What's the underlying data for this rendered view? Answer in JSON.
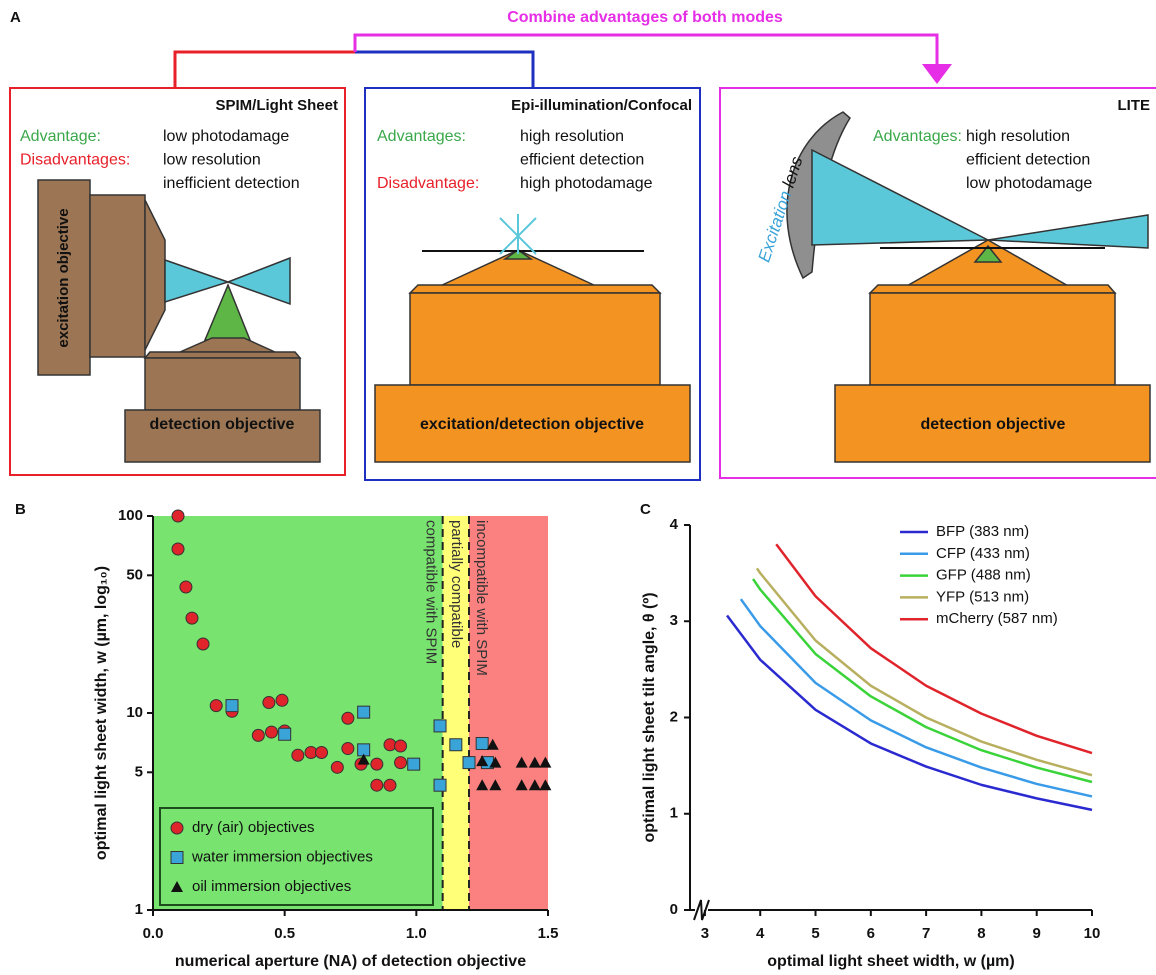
{
  "panel_a": {
    "label": "A",
    "banner": "Combine advantages of both modes",
    "excitation_objective": "excitation objective",
    "excitation_lens": [
      "Excitation",
      "lens"
    ],
    "boxes": [
      {
        "title": "SPIM/Light Sheet",
        "color": "#e8202a",
        "items": [
          {
            "key": "Advantage:",
            "key_color": "#3aa84a",
            "text": "low photodamage"
          },
          {
            "key": "Disadvantages:",
            "key_color": "#e8202a",
            "text": "low resolution"
          },
          {
            "text": "inefficient detection"
          }
        ],
        "objective_label": "detection objective"
      },
      {
        "title": "Epi-illumination/Confocal",
        "color": "#1f2fbf",
        "items": [
          {
            "key": "Advantages:",
            "key_color": "#3aa84a",
            "text": "high resolution"
          },
          {
            "text": "efficient detection"
          },
          {
            "key": "Disadvantage:",
            "key_color": "#e8202a",
            "text": "high photodamage"
          }
        ],
        "objective_label": "excitation/detection objective"
      },
      {
        "title": "LITE",
        "color": "#e62ee6",
        "items": [
          {
            "key": "Advantages:",
            "key_color": "#3aa84a",
            "text": "high resolution"
          },
          {
            "text": "efficient detection"
          },
          {
            "text": "low photodamage"
          }
        ],
        "objective_label": "detection objective"
      }
    ]
  },
  "chart_data": [
    {
      "panel": "B",
      "type": "scatter",
      "x_label": "numerical aperture (NA) of detection objective",
      "y_label": "optimal light sheet width, w (µm, log₁₀)",
      "log_y": true,
      "xlim": [
        0,
        1.5
      ],
      "ylim": [
        1,
        100
      ],
      "xticks": [
        {
          "value": 0,
          "label": "0.0"
        },
        0.5,
        {
          "value": 1,
          "label": "1.0"
        },
        1.5
      ],
      "yticks": [
        1,
        5,
        10,
        50,
        100
      ],
      "regions": [
        {
          "from": 0,
          "to": 1.1,
          "color": "#78e36f",
          "label": "compatible with SPIM"
        },
        {
          "from": 1.1,
          "to": 1.2,
          "color": "#ffff78",
          "label": "partially compatible"
        },
        {
          "from": 1.2,
          "to": 1.5,
          "color": "#fb8080",
          "label": "incompatible with SPIM"
        }
      ],
      "series": [
        {
          "name": "dry (air) objectives",
          "color": "#e0242c",
          "marker": "circle",
          "x": [
            0.095,
            0.095,
            0.125,
            0.148,
            0.19,
            0.24,
            0.3,
            0.44,
            0.49,
            0.45,
            0.5,
            0.4,
            0.55,
            0.6,
            0.64,
            0.7,
            0.74,
            0.74,
            0.79,
            0.85,
            0.9,
            0.94,
            0.94,
            0.85,
            0.9
          ],
          "values": [
            100,
            68,
            43.6,
            30.3,
            22.4,
            10.9,
            10.2,
            11.3,
            11.6,
            8,
            8.1,
            7.7,
            6.1,
            6.3,
            6.3,
            5.3,
            6.6,
            9.4,
            5.5,
            5.5,
            6.9,
            6.8,
            5.6,
            4.3,
            4.3
          ]
        },
        {
          "name": "water immersion objectives",
          "color": "#3aa3d8",
          "marker": "square",
          "x": [
            0.3,
            0.5,
            0.8,
            0.8,
            0.99,
            1.09,
            1.09,
            1.15,
            1.2,
            1.25,
            1.27
          ],
          "values": [
            10.9,
            7.8,
            10.1,
            6.5,
            5.5,
            8.6,
            4.3,
            6.9,
            5.6,
            7.0,
            5.6
          ]
        },
        {
          "name": "oil immersion objectives",
          "color": "#111111",
          "marker": "triangle",
          "x": [
            0.8,
            1.25,
            1.29,
            1.3,
            1.25,
            1.3,
            1.4,
            1.4,
            1.45,
            1.45,
            1.49,
            1.49
          ],
          "values": [
            5.8,
            5.7,
            6.9,
            5.6,
            4.3,
            4.3,
            5.6,
            4.3,
            5.6,
            4.3,
            5.6,
            4.3
          ]
        }
      ]
    },
    {
      "panel": "C",
      "type": "line",
      "x_label": "optimal light sheet width, w (µm)",
      "y_label": "optimal light sheet tilt angle, θ (º)",
      "xlim": [
        2.73,
        10
      ],
      "ylim": [
        0,
        4
      ],
      "xticks": [
        3,
        4,
        5,
        6,
        7,
        8,
        9,
        10
      ],
      "yticks": [
        0,
        1,
        2,
        3,
        4
      ],
      "legend": "top-right",
      "series": [
        {
          "name": "BFP (383 nm)",
          "color": "#2a2ad0",
          "x": [
            3.4,
            4,
            5,
            6,
            7,
            8,
            9,
            10
          ],
          "values": [
            3.06,
            2.6,
            2.08,
            1.73,
            1.49,
            1.3,
            1.16,
            1.04
          ]
        },
        {
          "name": "CFP (433 nm)",
          "color": "#3a9be8",
          "x": [
            3.65,
            4,
            5,
            6,
            7,
            8,
            9,
            10
          ],
          "values": [
            3.23,
            2.95,
            2.36,
            1.97,
            1.69,
            1.48,
            1.31,
            1.18
          ]
        },
        {
          "name": "GFP (488 nm)",
          "color": "#3ad43a",
          "x": [
            3.87,
            4,
            5,
            6,
            7,
            8,
            9,
            10
          ],
          "values": [
            3.44,
            3.33,
            2.66,
            2.22,
            1.9,
            1.66,
            1.48,
            1.33
          ]
        },
        {
          "name": "YFP (513 nm)",
          "color": "#b8b060",
          "x": [
            3.94,
            4,
            5,
            6,
            7,
            8,
            9,
            10
          ],
          "values": [
            3.55,
            3.5,
            2.8,
            2.33,
            2.0,
            1.75,
            1.56,
            1.4
          ]
        },
        {
          "name": "mCherry (587 nm)",
          "color": "#e0242c",
          "x": [
            4.29,
            5,
            6,
            7,
            8,
            9,
            10
          ],
          "values": [
            3.8,
            3.26,
            2.72,
            2.33,
            2.04,
            1.81,
            1.63
          ]
        }
      ]
    }
  ]
}
